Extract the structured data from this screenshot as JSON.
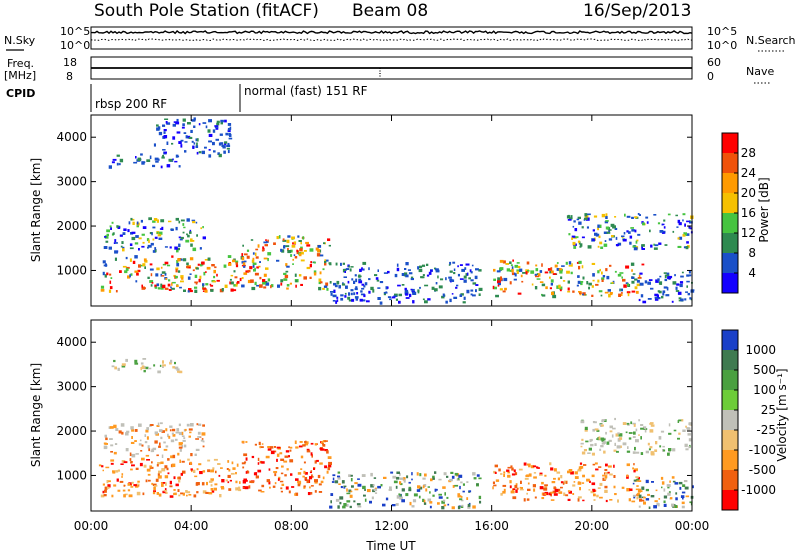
{
  "header": {
    "station": "South Pole Station (fitACF)",
    "beam": "Beam 08",
    "date": "16/Sep/2013"
  },
  "panels": {
    "nsky": {
      "label": "N.Sky",
      "ticks": [
        "10^5",
        "10^0"
      ],
      "right_ticks": [
        "10^5",
        "10^0"
      ],
      "right_label": "N.Search"
    },
    "freq": {
      "label_line1": "Freq.",
      "label_line2": "[MHz]",
      "ticks": [
        "18",
        "8"
      ],
      "right_ticks": [
        "60",
        "0"
      ],
      "right_label": "Nave"
    },
    "cpid": {
      "label": "CPID",
      "segments": [
        {
          "text": "rbsp 200 RF",
          "start": "00:00"
        },
        {
          "text": "normal (fast) 151 RF",
          "start": "06:00"
        }
      ]
    }
  },
  "chart_data": [
    {
      "type": "heatmap",
      "name": "power",
      "ylabel": "Slant Range [km]",
      "y_ticks": [
        1000,
        2000,
        3000,
        4000
      ],
      "ylim": [
        200,
        4500
      ],
      "x_ticks": [
        "00:00",
        "04:00",
        "08:00",
        "12:00",
        "16:00",
        "20:00",
        "00:00"
      ],
      "xlim_hours": [
        0,
        24
      ],
      "colorbar": {
        "label": "Power [dB]",
        "ticks": [
          "28",
          "24",
          "20",
          "16",
          "12",
          "8",
          "4"
        ],
        "colors": [
          "#ff0000",
          "#f0520a",
          "#ff9a00",
          "#f5c000",
          "#46c440",
          "#2e8a50",
          "#1a50c8",
          "#1400ff"
        ]
      },
      "echo_regions": [
        {
          "t0": 0.3,
          "t1": 6.0,
          "r0": 550,
          "r1": 1350,
          "level": "high"
        },
        {
          "t0": 0.5,
          "t1": 4.5,
          "r0": 1450,
          "r1": 2200,
          "level": "mid"
        },
        {
          "t0": 0.7,
          "t1": 3.5,
          "r0": 3350,
          "r1": 3650,
          "level": "low"
        },
        {
          "t0": 2.5,
          "t1": 5.6,
          "r0": 3600,
          "r1": 4450,
          "level": "low"
        },
        {
          "t0": 6.0,
          "t1": 9.5,
          "r0": 600,
          "r1": 1800,
          "level": "high"
        },
        {
          "t0": 9.5,
          "t1": 15.5,
          "r0": 300,
          "r1": 1200,
          "level": "low"
        },
        {
          "t0": 16.0,
          "t1": 22.0,
          "r0": 450,
          "r1": 1250,
          "level": "high"
        },
        {
          "t0": 19.0,
          "t1": 24.0,
          "r0": 1500,
          "r1": 2300,
          "level": "mid"
        },
        {
          "t0": 21.5,
          "t1": 24.0,
          "r0": 300,
          "r1": 1000,
          "level": "low"
        }
      ]
    },
    {
      "type": "heatmap",
      "name": "velocity",
      "ylabel": "Slant Range [km]",
      "y_ticks": [
        1000,
        2000,
        3000,
        4000
      ],
      "ylim": [
        200,
        4500
      ],
      "x_ticks": [
        "00:00",
        "04:00",
        "08:00",
        "12:00",
        "16:00",
        "20:00",
        "00:00"
      ],
      "xlim_hours": [
        0,
        24
      ],
      "xlabel": "Time UT",
      "colorbar": {
        "label": "Velocity [m s⁻¹]",
        "ticks": [
          "1000",
          "500",
          "100",
          "25",
          "-25",
          "-100",
          "-500",
          "-1000"
        ],
        "colors": [
          "#1a40c8",
          "#3f7a50",
          "#4aa040",
          "#6dcc38",
          "#c0c0b8",
          "#f0c070",
          "#ff9a20",
          "#f06010",
          "#ff0000"
        ]
      },
      "echo_regions": [
        {
          "t0": 0.3,
          "t1": 6.0,
          "r0": 550,
          "r1": 1400,
          "level": "orange"
        },
        {
          "t0": 0.5,
          "t1": 4.5,
          "r0": 1450,
          "r1": 2200,
          "level": "orangegray"
        },
        {
          "t0": 0.7,
          "t1": 3.5,
          "r0": 3350,
          "r1": 3650,
          "level": "gray"
        },
        {
          "t0": 6.0,
          "t1": 9.5,
          "r0": 600,
          "r1": 1800,
          "level": "red"
        },
        {
          "t0": 9.5,
          "t1": 15.5,
          "r0": 300,
          "r1": 1100,
          "level": "green"
        },
        {
          "t0": 16.0,
          "t1": 22.0,
          "r0": 450,
          "r1": 1300,
          "level": "orange"
        },
        {
          "t0": 19.5,
          "t1": 24.0,
          "r0": 1500,
          "r1": 2300,
          "level": "gray"
        },
        {
          "t0": 21.5,
          "t1": 24.0,
          "r0": 300,
          "r1": 1000,
          "level": "green"
        }
      ]
    }
  ]
}
